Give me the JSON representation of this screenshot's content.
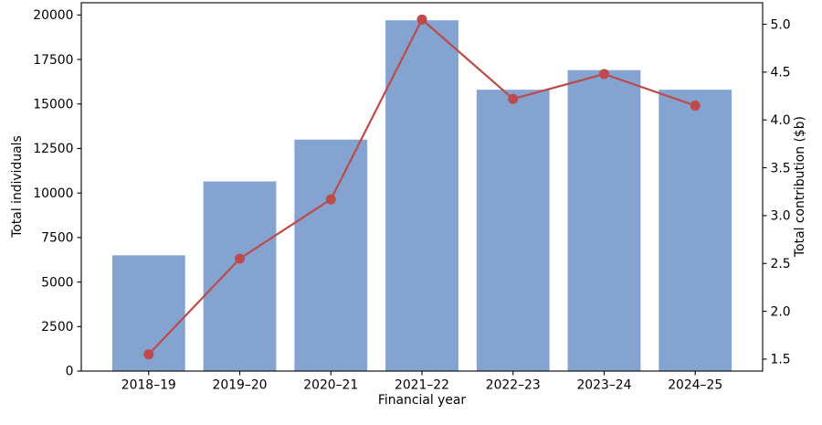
{
  "chart_data": {
    "type": "bar",
    "subtype": "bar+line dual axis",
    "title": "",
    "categories": [
      "2018–19",
      "2019–20",
      "2020–21",
      "2021–22",
      "2022–23",
      "2023–24",
      "2024–25"
    ],
    "series": [
      {
        "name": "Total individuals",
        "chart": "bar",
        "axis": "left",
        "color": "#84a3d0",
        "values": [
          6500,
          10650,
          13000,
          19700,
          15800,
          16900,
          15800
        ]
      },
      {
        "name": "Total contribution ($b)",
        "chart": "line",
        "axis": "right",
        "color": "#bc4b49",
        "marker": "circle",
        "values": [
          1.55,
          2.55,
          3.17,
          5.05,
          4.22,
          4.48,
          4.15
        ]
      }
    ],
    "xlabel": "Financial year",
    "ylabel_left": "Total individuals",
    "ylabel_right": "Total contribution ($b)",
    "yticks_left": [
      0,
      2500,
      5000,
      7500,
      10000,
      12500,
      15000,
      17500,
      20000
    ],
    "yticks_right": [
      1.5,
      2.0,
      2.5,
      3.0,
      3.5,
      4.0,
      4.5,
      5.0
    ],
    "ylim_left": [
      0,
      20685
    ],
    "ylim_right": [
      1.375,
      5.225
    ],
    "bar_width_frac": 0.8,
    "grid": false,
    "legend": "none",
    "background": "#ffffff",
    "spine_color": "#000000",
    "tick_label_color": "#000000"
  }
}
